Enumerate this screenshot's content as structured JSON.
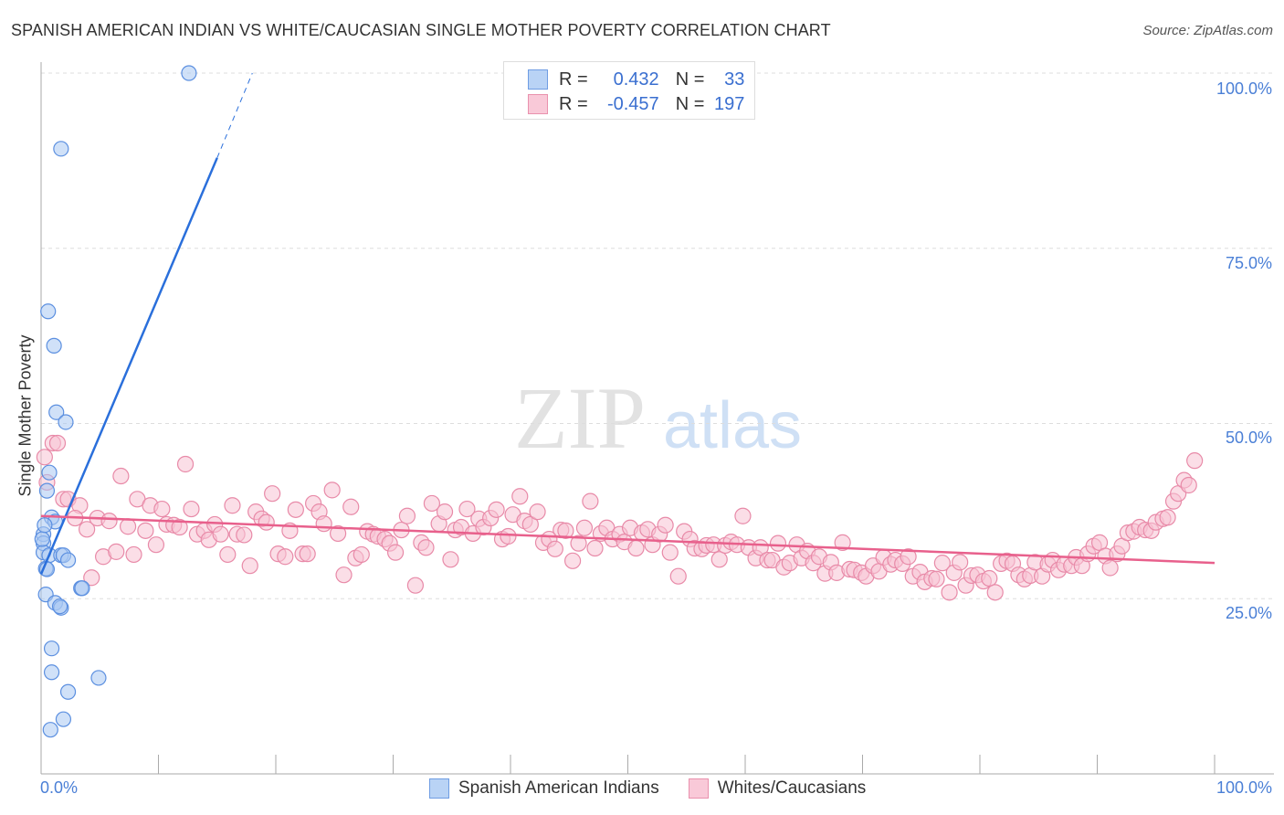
{
  "chart_data": {
    "type": "scatter",
    "title": "SPANISH AMERICAN INDIAN VS WHITE/CAUCASIAN SINGLE MOTHER POVERTY CORRELATION CHART",
    "source": "Source: ZipAtlas.com",
    "xlabel": "",
    "ylabel": "Single Mother Poverty",
    "xlim": [
      0,
      100
    ],
    "ylim": [
      0,
      100
    ],
    "x_tick_labels": [
      "0.0%",
      "100.0%"
    ],
    "y_tick_labels": [
      "100.0%",
      "75.0%",
      "50.0%",
      "25.0%"
    ],
    "y_ticks": [
      100,
      75,
      50,
      25
    ],
    "grid": true,
    "watermark": "ZIPatlas",
    "legend": {
      "placement": "top-center",
      "rows": [
        {
          "r_label": "R =",
          "r": "0.432",
          "n_label": "N =",
          "n": "33"
        },
        {
          "r_label": "R =",
          "r": "-0.457",
          "n_label": "N =",
          "n": "197"
        }
      ]
    },
    "series": [
      {
        "name": "Spanish American Indians",
        "color": "#5b8fe0",
        "fill": "#a9c8f3",
        "line_color": "#2a6fdb",
        "trend": {
          "x0": 0,
          "y0": 28.5,
          "x1": 15,
          "y1": 87.9,
          "dash_to_x": 18,
          "dash_to_y": 100
        },
        "points": [
          [
            12.6,
            100
          ],
          [
            1.7,
            89.2
          ],
          [
            0.6,
            66
          ],
          [
            1.1,
            61.1
          ],
          [
            1.3,
            51.6
          ],
          [
            2.1,
            50.2
          ],
          [
            0.7,
            43
          ],
          [
            0.5,
            40.4
          ],
          [
            0.9,
            36.6
          ],
          [
            1.2,
            36
          ],
          [
            0.2,
            34.2
          ],
          [
            0.2,
            32.9
          ],
          [
            0.2,
            31.6
          ],
          [
            0.7,
            31.2
          ],
          [
            1.7,
            31.2
          ],
          [
            1.9,
            31.2
          ],
          [
            2.3,
            30.5
          ],
          [
            0.4,
            29.3
          ],
          [
            0.5,
            29.2
          ],
          [
            3.4,
            26.5
          ],
          [
            3.5,
            26.5
          ],
          [
            0.4,
            25.6
          ],
          [
            1.2,
            24.4
          ],
          [
            1.7,
            23.7
          ],
          [
            1.6,
            23.9
          ],
          [
            0.9,
            17.9
          ],
          [
            0.9,
            14.5
          ],
          [
            4.9,
            13.7
          ],
          [
            2.3,
            11.7
          ],
          [
            1.9,
            7.8
          ],
          [
            0.8,
            6.3
          ],
          [
            0.1,
            33.5
          ],
          [
            0.3,
            35.5
          ]
        ]
      },
      {
        "name": "Whites/Caucasians",
        "color": "#e88aa8",
        "fill": "#f7c3d3",
        "line_color": "#e8608c",
        "trend": {
          "x0": 0,
          "y0": 36.8,
          "x1": 100,
          "y1": 30.1
        },
        "points": [
          [
            0.3,
            45.2
          ],
          [
            1.0,
            47.2
          ],
          [
            1.4,
            47.2
          ],
          [
            0.5,
            41.6
          ],
          [
            1.9,
            39.2
          ],
          [
            2.3,
            39.2
          ],
          [
            3.3,
            38.3
          ],
          [
            2.9,
            36.5
          ],
          [
            3.9,
            34.9
          ],
          [
            4.3,
            28.0
          ],
          [
            4.8,
            36.5
          ],
          [
            5.3,
            31.0
          ],
          [
            5.8,
            36.1
          ],
          [
            6.4,
            31.7
          ],
          [
            6.8,
            42.5
          ],
          [
            7.4,
            35.3
          ],
          [
            7.9,
            31.3
          ],
          [
            8.2,
            39.2
          ],
          [
            8.9,
            34.7
          ],
          [
            9.3,
            38.3
          ],
          [
            9.8,
            32.7
          ],
          [
            10.3,
            37.8
          ],
          [
            10.7,
            35.6
          ],
          [
            11.3,
            35.5
          ],
          [
            11.8,
            35.2
          ],
          [
            12.3,
            44.2
          ],
          [
            12.8,
            37.8
          ],
          [
            13.3,
            34.2
          ],
          [
            13.9,
            34.7
          ],
          [
            14.3,
            33.4
          ],
          [
            14.8,
            35.6
          ],
          [
            15.3,
            34.2
          ],
          [
            15.9,
            31.3
          ],
          [
            16.3,
            38.3
          ],
          [
            16.7,
            34.2
          ],
          [
            17.3,
            34.1
          ],
          [
            17.8,
            29.7
          ],
          [
            18.3,
            37.4
          ],
          [
            18.8,
            36.4
          ],
          [
            19.2,
            35.9
          ],
          [
            19.7,
            40.0
          ],
          [
            20.2,
            31.4
          ],
          [
            20.8,
            31.0
          ],
          [
            21.2,
            34.7
          ],
          [
            21.7,
            37.7
          ],
          [
            22.3,
            31.4
          ],
          [
            22.7,
            31.4
          ],
          [
            23.2,
            38.6
          ],
          [
            23.7,
            37.4
          ],
          [
            24.1,
            35.7
          ],
          [
            24.8,
            40.5
          ],
          [
            25.3,
            34.3
          ],
          [
            25.8,
            28.4
          ],
          [
            26.4,
            38.1
          ],
          [
            26.8,
            30.8
          ],
          [
            27.3,
            31.3
          ],
          [
            27.8,
            34.6
          ],
          [
            28.3,
            34.2
          ],
          [
            28.7,
            33.9
          ],
          [
            29.3,
            33.5
          ],
          [
            29.7,
            32.9
          ],
          [
            30.2,
            31.6
          ],
          [
            30.7,
            34.8
          ],
          [
            31.2,
            36.8
          ],
          [
            31.9,
            26.9
          ],
          [
            32.4,
            33.0
          ],
          [
            32.8,
            32.3
          ],
          [
            33.3,
            38.6
          ],
          [
            33.9,
            35.7
          ],
          [
            34.4,
            37.4
          ],
          [
            34.9,
            30.6
          ],
          [
            35.3,
            34.8
          ],
          [
            35.8,
            35.2
          ],
          [
            36.3,
            37.8
          ],
          [
            36.8,
            34.3
          ],
          [
            37.3,
            36.4
          ],
          [
            37.7,
            35.2
          ],
          [
            38.3,
            36.5
          ],
          [
            38.8,
            37.7
          ],
          [
            39.3,
            33.5
          ],
          [
            39.8,
            33.9
          ],
          [
            40.2,
            37.0
          ],
          [
            40.8,
            39.6
          ],
          [
            41.2,
            36.1
          ],
          [
            41.7,
            35.6
          ],
          [
            42.3,
            37.4
          ],
          [
            42.8,
            33.0
          ],
          [
            43.3,
            33.5
          ],
          [
            43.8,
            32.1
          ],
          [
            44.3,
            34.8
          ],
          [
            44.7,
            34.7
          ],
          [
            45.3,
            30.4
          ],
          [
            45.8,
            32.9
          ],
          [
            46.3,
            35.1
          ],
          [
            46.8,
            38.9
          ],
          [
            47.2,
            32.2
          ],
          [
            47.7,
            34.3
          ],
          [
            48.2,
            35.1
          ],
          [
            48.7,
            33.5
          ],
          [
            49.3,
            34.2
          ],
          [
            49.7,
            33.1
          ],
          [
            50.2,
            35.1
          ],
          [
            50.7,
            32.2
          ],
          [
            51.2,
            34.4
          ],
          [
            51.7,
            34.9
          ],
          [
            52.1,
            32.7
          ],
          [
            52.7,
            34.2
          ],
          [
            53.2,
            35.5
          ],
          [
            53.6,
            31.6
          ],
          [
            54.3,
            28.2
          ],
          [
            54.8,
            34.6
          ],
          [
            55.3,
            33.5
          ],
          [
            55.7,
            32.2
          ],
          [
            56.3,
            32.1
          ],
          [
            56.7,
            32.6
          ],
          [
            57.3,
            32.7
          ],
          [
            57.8,
            30.6
          ],
          [
            58.3,
            32.6
          ],
          [
            58.8,
            33.1
          ],
          [
            59.3,
            32.7
          ],
          [
            59.8,
            36.8
          ],
          [
            60.3,
            32.3
          ],
          [
            60.9,
            30.8
          ],
          [
            61.3,
            32.3
          ],
          [
            61.9,
            30.5
          ],
          [
            62.3,
            30.5
          ],
          [
            62.8,
            32.9
          ],
          [
            63.3,
            29.5
          ],
          [
            63.8,
            30.1
          ],
          [
            64.4,
            32.7
          ],
          [
            64.8,
            30.8
          ],
          [
            65.3,
            31.8
          ],
          [
            65.8,
            30.1
          ],
          [
            66.3,
            31.0
          ],
          [
            66.8,
            28.6
          ],
          [
            67.3,
            30.2
          ],
          [
            67.8,
            28.7
          ],
          [
            68.3,
            33.0
          ],
          [
            68.9,
            29.2
          ],
          [
            69.3,
            29.1
          ],
          [
            69.9,
            28.7
          ],
          [
            70.3,
            28.2
          ],
          [
            70.9,
            29.7
          ],
          [
            71.4,
            28.9
          ],
          [
            71.8,
            30.9
          ],
          [
            72.4,
            29.9
          ],
          [
            72.8,
            30.5
          ],
          [
            73.4,
            30.0
          ],
          [
            73.9,
            31.0
          ],
          [
            74.3,
            28.2
          ],
          [
            74.9,
            28.8
          ],
          [
            75.3,
            27.4
          ],
          [
            75.9,
            27.9
          ],
          [
            76.3,
            27.8
          ],
          [
            76.8,
            30.1
          ],
          [
            77.4,
            25.9
          ],
          [
            77.8,
            28.7
          ],
          [
            78.3,
            30.2
          ],
          [
            78.8,
            26.9
          ],
          [
            79.3,
            28.3
          ],
          [
            79.8,
            28.4
          ],
          [
            80.3,
            27.5
          ],
          [
            80.8,
            27.9
          ],
          [
            81.3,
            25.9
          ],
          [
            81.8,
            30.0
          ],
          [
            82.3,
            30.4
          ],
          [
            82.8,
            30.0
          ],
          [
            83.3,
            28.4
          ],
          [
            83.8,
            27.8
          ],
          [
            84.3,
            28.3
          ],
          [
            84.7,
            30.2
          ],
          [
            85.3,
            28.2
          ],
          [
            85.8,
            29.9
          ],
          [
            86.2,
            30.5
          ],
          [
            86.7,
            29.1
          ],
          [
            87.2,
            29.9
          ],
          [
            87.8,
            29.7
          ],
          [
            88.2,
            30.9
          ],
          [
            88.7,
            29.7
          ],
          [
            89.2,
            31.4
          ],
          [
            89.7,
            32.5
          ],
          [
            90.2,
            33.0
          ],
          [
            90.7,
            31.1
          ],
          [
            91.1,
            29.4
          ],
          [
            91.7,
            31.4
          ],
          [
            92.1,
            32.5
          ],
          [
            92.6,
            34.4
          ],
          [
            93.1,
            34.6
          ],
          [
            93.6,
            35.2
          ],
          [
            94.1,
            34.8
          ],
          [
            94.6,
            34.7
          ],
          [
            95.0,
            35.9
          ],
          [
            95.6,
            36.4
          ],
          [
            96.0,
            36.6
          ],
          [
            96.5,
            38.9
          ],
          [
            96.9,
            40.0
          ],
          [
            97.4,
            41.9
          ],
          [
            97.8,
            41.2
          ],
          [
            98.3,
            44.7
          ]
        ]
      }
    ]
  }
}
